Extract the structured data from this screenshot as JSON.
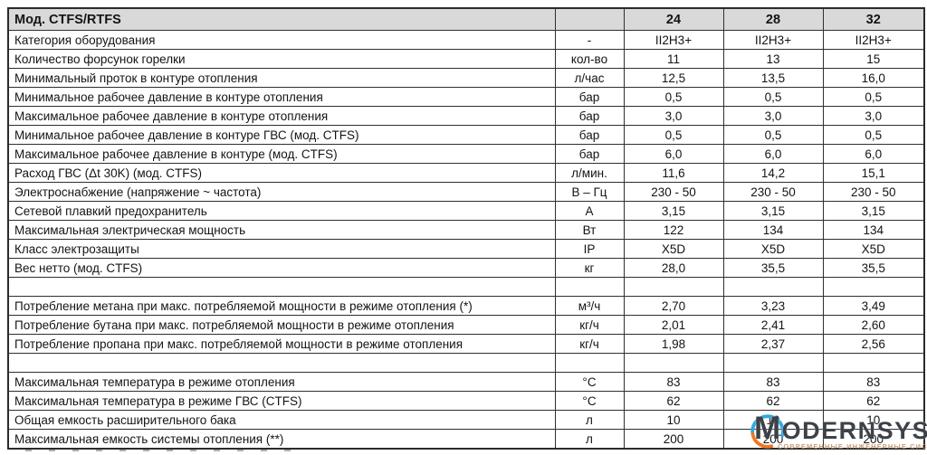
{
  "table": {
    "header": {
      "title": "Мод. CTFS/RTFS",
      "unit": "",
      "models": [
        "24",
        "28",
        "32"
      ]
    },
    "rows": [
      {
        "label": "Категория оборудования",
        "unit": "-",
        "values": [
          "II2H3+",
          "II2H3+",
          "II2H3+"
        ]
      },
      {
        "label": "Количество форсунок горелки",
        "unit": "кол-во",
        "values": [
          "11",
          "13",
          "15"
        ]
      },
      {
        "label": "Минимальный проток в контуре отопления",
        "unit": "л/час",
        "values": [
          "12,5",
          "13,5",
          "16,0"
        ]
      },
      {
        "label": "Минимальное рабочее давление в контуре отопления",
        "unit": "бар",
        "values": [
          "0,5",
          "0,5",
          "0,5"
        ]
      },
      {
        "label": "Максимальное рабочее давление в контуре отопления",
        "unit": "бар",
        "values": [
          "3,0",
          "3,0",
          "3,0"
        ]
      },
      {
        "label": "Минимальное рабочее давление в контуре ГВС (мод. CTFS)",
        "unit": "бар",
        "values": [
          "0,5",
          "0,5",
          "0,5"
        ]
      },
      {
        "label": "Максимальное рабочее давление в контуре (мод. CTFS)",
        "unit": "бар",
        "values": [
          "6,0",
          "6,0",
          "6,0"
        ]
      },
      {
        "label": "Расход ГВС (Δt 30K) (мод. CTFS)",
        "unit": "л/мин.",
        "values": [
          "11,6",
          "14,2",
          "15,1"
        ]
      },
      {
        "label": "Электроснабжение (напряжение ~ частота)",
        "unit": "В – Гц",
        "values": [
          "230 - 50",
          "230 - 50",
          "230 - 50"
        ]
      },
      {
        "label": "Сетевой плавкий предохранитель",
        "unit": "А",
        "values": [
          "3,15",
          "3,15",
          "3,15"
        ]
      },
      {
        "label": "Максимальная электрическая мощность",
        "unit": "Вт",
        "values": [
          "122",
          "134",
          "134"
        ]
      },
      {
        "label": "Класс электрозащиты",
        "unit": "IP",
        "values": [
          "X5D",
          "X5D",
          "X5D"
        ]
      },
      {
        "label": "Вес нетто (мод. CTFS)",
        "unit": "кг",
        "values": [
          "28,0",
          "35,5",
          "35,5"
        ]
      },
      {
        "spacer": true,
        "label": "",
        "unit": "",
        "values": [
          "",
          "",
          ""
        ]
      },
      {
        "label": "Потребление метана при макс. потребляемой мощности в режиме отопления (*)",
        "unit": "м³/ч",
        "values": [
          "2,70",
          "3,23",
          "3,49"
        ]
      },
      {
        "label": "Потребление бутана при макс. потребляемой мощности в режиме отопления",
        "unit": "кг/ч",
        "values": [
          "2,01",
          "2,41",
          "2,60"
        ]
      },
      {
        "label": "Потребление пропана при макс. потребляемой мощности в режиме отопления",
        "unit": "кг/ч",
        "values": [
          "1,98",
          "2,37",
          "2,56"
        ]
      },
      {
        "spacer": true,
        "label": "",
        "unit": "",
        "values": [
          "",
          "",
          ""
        ]
      },
      {
        "label": "Максимальная температура в режиме отопления",
        "unit": "°C",
        "values": [
          "83",
          "83",
          "83"
        ]
      },
      {
        "label": "Максимальная температура в режиме ГВС (CTFS)",
        "unit": "°C",
        "values": [
          "62",
          "62",
          "62"
        ]
      },
      {
        "label": "Общая емкость расширительного бака",
        "unit": "л",
        "values": [
          "10",
          "10",
          "10"
        ]
      },
      {
        "label": "Максимальная емкость системы отопления (**)",
        "unit": "л",
        "values": [
          "200",
          "200",
          "200"
        ]
      }
    ],
    "colors": {
      "header_bg": "#d9d9d9",
      "border": "#2f2f2f",
      "text": "#141414"
    }
  },
  "watermark": {
    "brand_m": "M",
    "brand_rest": "ODERNSYS",
    "tagline": "СОВРЕМЕННЫЕ ИНЖЕНЕРНЫЕ СИСТЕМЫ",
    "colors": {
      "arc_blue": "#2fa8e1",
      "arc_orange": "#ef7623",
      "word": "#3d4249",
      "tagline": "#c18a5c"
    }
  }
}
